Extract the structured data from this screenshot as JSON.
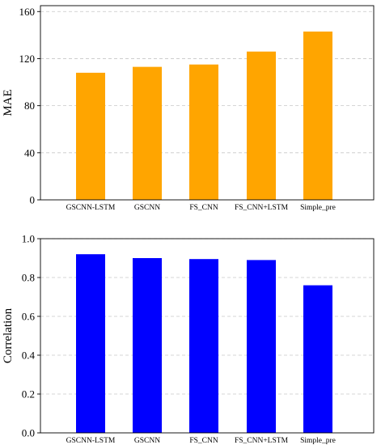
{
  "chart_data": [
    {
      "type": "bar",
      "categories": [
        "GSCNN-LSTM",
        "GSCNN",
        "FS_CNN",
        "FS_CNN+LSTM",
        "Simple_pre"
      ],
      "values": [
        108,
        113,
        115,
        126,
        143
      ],
      "ylabel": "MAE",
      "ylim": [
        0,
        165
      ],
      "yticks": [
        0,
        40,
        80,
        120,
        160
      ],
      "ytick_labels": [
        "0",
        "40",
        "80",
        "120",
        "160"
      ],
      "grid": "y-dashed",
      "color": "#ffa500"
    },
    {
      "type": "bar",
      "categories": [
        "GSCNN-LSTM",
        "GSCNN",
        "FS_CNN",
        "FS_CNN+LSTM",
        "Simple_pre"
      ],
      "values": [
        0.92,
        0.9,
        0.895,
        0.89,
        0.76
      ],
      "ylabel": "Correlation",
      "ylim": [
        0,
        1.0
      ],
      "yticks": [
        0.0,
        0.2,
        0.4,
        0.6,
        0.8,
        1.0
      ],
      "ytick_labels": [
        "0.0",
        "0.2",
        "0.4",
        "0.6",
        "0.8",
        "1.0"
      ],
      "grid": "y-dashed",
      "color": "#0000ff"
    }
  ]
}
